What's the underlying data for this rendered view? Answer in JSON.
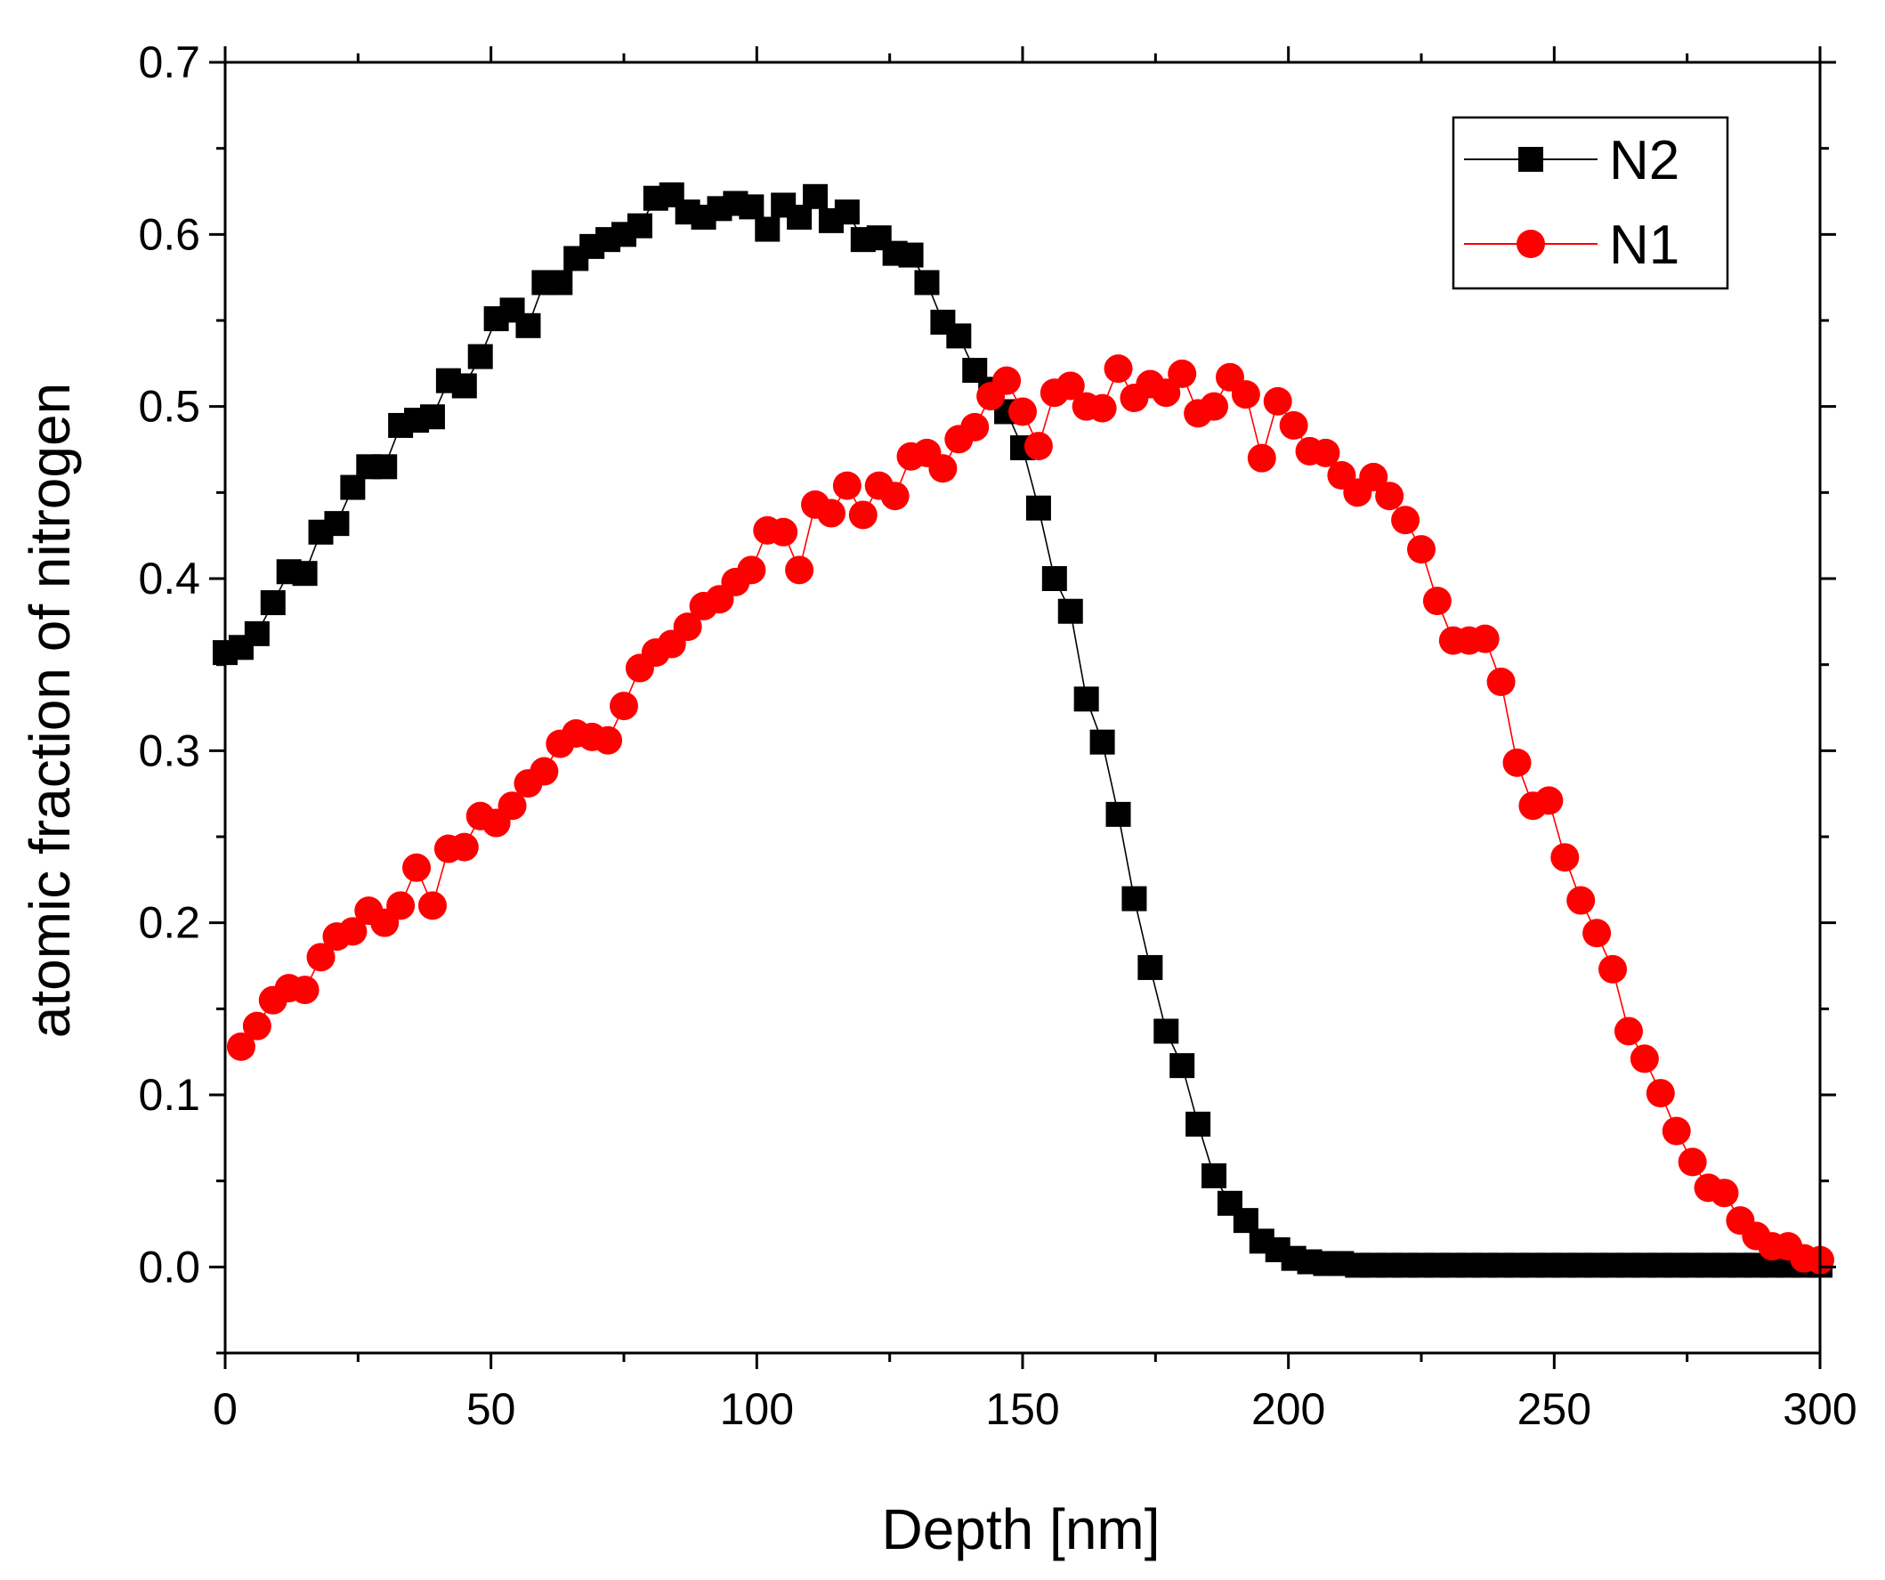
{
  "chart_data": {
    "type": "scatter",
    "title": "",
    "xlabel": "Depth [nm]",
    "ylabel": "atomic fraction of nitrogen",
    "xlim": [
      0,
      300
    ],
    "ylim": [
      -0.05,
      0.7
    ],
    "xticks": [
      "0",
      "50",
      "100",
      "150",
      "200",
      "250",
      "300"
    ],
    "yticks": [
      "0.0",
      "0.1",
      "0.2",
      "0.3",
      "0.4",
      "0.5",
      "0.6",
      "0.7"
    ],
    "grid": false,
    "legend_position": "top-right",
    "series": [
      {
        "name": "N2",
        "color": "#000000",
        "marker": "square",
        "x": [
          0,
          3,
          6,
          9,
          12,
          15,
          18,
          21,
          24,
          27,
          30,
          33,
          36,
          39,
          42,
          45,
          48,
          51,
          54,
          57,
          60,
          63,
          66,
          69,
          72,
          75,
          78,
          81,
          84,
          87,
          90,
          93,
          96,
          99,
          102,
          105,
          108,
          111,
          114,
          117,
          120,
          123,
          126,
          129,
          132,
          135,
          138,
          141,
          144,
          147,
          150,
          153,
          156,
          159,
          162,
          165,
          168,
          171,
          174,
          177,
          180,
          183,
          186,
          189,
          192,
          195,
          198,
          201,
          204,
          207,
          210,
          213,
          216,
          219,
          222,
          225,
          228,
          231,
          234,
          237,
          240,
          243,
          246,
          249,
          252,
          255,
          258,
          261,
          264,
          267,
          270,
          273,
          276,
          279,
          282,
          285,
          288,
          291,
          294,
          297,
          300
        ],
        "y": [
          0.357,
          0.36,
          0.368,
          0.386,
          0.404,
          0.403,
          0.427,
          0.432,
          0.453,
          0.465,
          0.465,
          0.489,
          0.492,
          0.494,
          0.515,
          0.512,
          0.529,
          0.551,
          0.556,
          0.547,
          0.572,
          0.572,
          0.586,
          0.593,
          0.597,
          0.6,
          0.605,
          0.621,
          0.623,
          0.613,
          0.61,
          0.615,
          0.618,
          0.616,
          0.603,
          0.617,
          0.61,
          0.622,
          0.608,
          0.613,
          0.597,
          0.598,
          0.589,
          0.588,
          0.572,
          0.549,
          0.541,
          0.521,
          0.51,
          0.497,
          0.476,
          0.441,
          0.4,
          0.381,
          0.33,
          0.305,
          0.263,
          0.214,
          0.174,
          0.137,
          0.117,
          0.083,
          0.053,
          0.037,
          0.027,
          0.015,
          0.01,
          0.005,
          0.003,
          0.002,
          0.002,
          0.001,
          0.001,
          0.001,
          0.001,
          0.001,
          0.001,
          0.001,
          0.001,
          0.001,
          0.001,
          0.001,
          0.001,
          0.001,
          0.001,
          0.001,
          0.001,
          0.001,
          0.001,
          0.001,
          0.001,
          0.001,
          0.001,
          0.001,
          0.001,
          0.001,
          0.001,
          0.001,
          0.001,
          0.001,
          0.001
        ]
      },
      {
        "name": "N1",
        "color": "#ff0000",
        "marker": "circle",
        "x": [
          3,
          6,
          9,
          12,
          15,
          18,
          21,
          24,
          27,
          30,
          33,
          36,
          39,
          42,
          45,
          48,
          51,
          54,
          57,
          60,
          63,
          66,
          69,
          72,
          75,
          78,
          81,
          84,
          87,
          90,
          93,
          96,
          99,
          102,
          105,
          108,
          111,
          114,
          117,
          120,
          123,
          126,
          129,
          132,
          135,
          138,
          141,
          144,
          147,
          150,
          153,
          156,
          159,
          162,
          165,
          168,
          171,
          174,
          177,
          180,
          183,
          186,
          189,
          192,
          195,
          198,
          201,
          204,
          207,
          210,
          213,
          216,
          219,
          222,
          225,
          228,
          231,
          234,
          237,
          240,
          243,
          246,
          249,
          252,
          255,
          258,
          261,
          264,
          267,
          270,
          273,
          276,
          279,
          282,
          285,
          288,
          291,
          294,
          297,
          300
        ],
        "y": [
          0.128,
          0.14,
          0.155,
          0.162,
          0.161,
          0.18,
          0.192,
          0.195,
          0.207,
          0.2,
          0.21,
          0.232,
          0.21,
          0.243,
          0.244,
          0.262,
          0.258,
          0.268,
          0.281,
          0.288,
          0.304,
          0.31,
          0.308,
          0.306,
          0.326,
          0.348,
          0.357,
          0.362,
          0.372,
          0.384,
          0.388,
          0.398,
          0.405,
          0.428,
          0.427,
          0.405,
          0.443,
          0.438,
          0.454,
          0.437,
          0.454,
          0.448,
          0.471,
          0.473,
          0.464,
          0.481,
          0.488,
          0.506,
          0.515,
          0.497,
          0.477,
          0.508,
          0.512,
          0.5,
          0.499,
          0.522,
          0.505,
          0.513,
          0.508,
          0.519,
          0.496,
          0.5,
          0.517,
          0.507,
          0.47,
          0.503,
          0.489,
          0.474,
          0.473,
          0.46,
          0.45,
          0.459,
          0.448,
          0.434,
          0.417,
          0.387,
          0.364,
          0.364,
          0.365,
          0.34,
          0.293,
          0.268,
          0.271,
          0.238,
          0.213,
          0.194,
          0.173,
          0.137,
          0.121,
          0.101,
          0.079,
          0.061,
          0.046,
          0.043,
          0.027,
          0.018,
          0.012,
          0.012,
          0.005,
          0.004
        ]
      }
    ]
  }
}
